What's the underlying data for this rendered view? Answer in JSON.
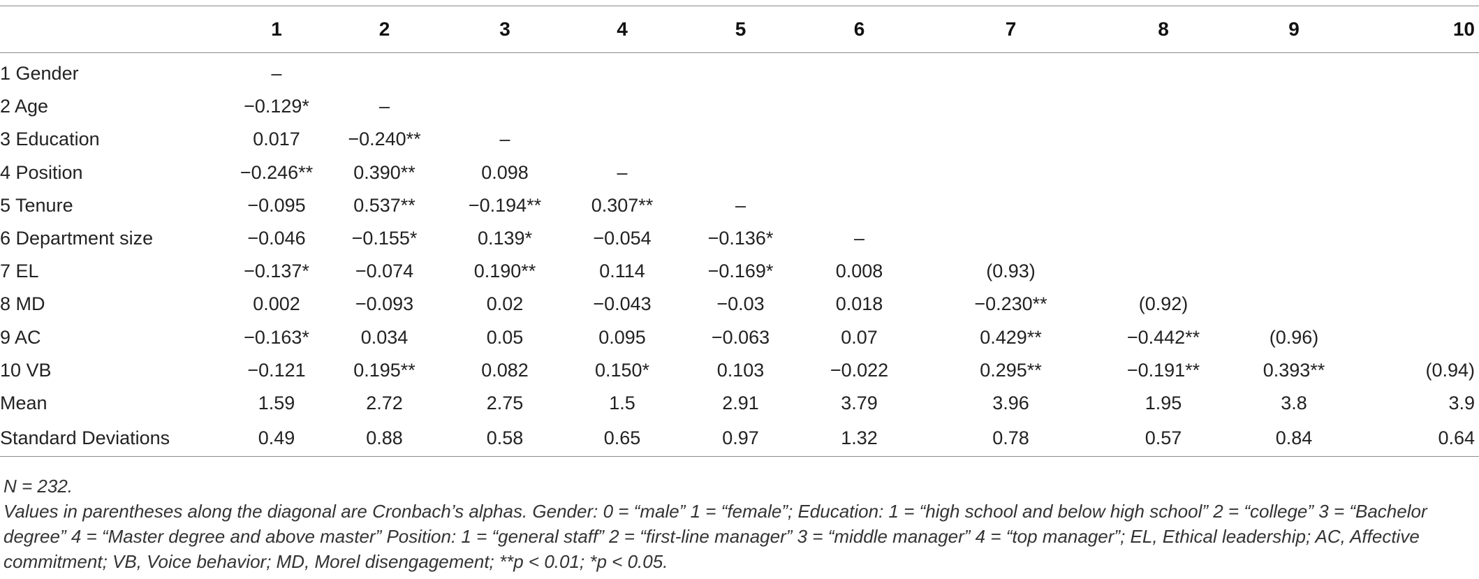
{
  "headers": [
    "",
    "1",
    "2",
    "3",
    "4",
    "5",
    "6",
    "7",
    "8",
    "9",
    "10"
  ],
  "rows": [
    {
      "label": "1 Gender",
      "cells": [
        "–",
        "",
        "",
        "",
        "",
        "",
        "",
        "",
        "",
        ""
      ]
    },
    {
      "label": "2 Age",
      "cells": [
        "−0.129*",
        "–",
        "",
        "",
        "",
        "",
        "",
        "",
        "",
        ""
      ]
    },
    {
      "label": "3 Education",
      "cells": [
        "0.017",
        "−0.240**",
        "–",
        "",
        "",
        "",
        "",
        "",
        "",
        ""
      ]
    },
    {
      "label": "4 Position",
      "cells": [
        "−0.246**",
        "0.390**",
        "0.098",
        "–",
        "",
        "",
        "",
        "",
        "",
        ""
      ]
    },
    {
      "label": "5 Tenure",
      "cells": [
        "−0.095",
        "0.537**",
        "−0.194**",
        "0.307**",
        "–",
        "",
        "",
        "",
        "",
        ""
      ]
    },
    {
      "label": "6 Department size",
      "cells": [
        "−0.046",
        "−0.155*",
        "0.139*",
        "−0.054",
        "−0.136*",
        "–",
        "",
        "",
        "",
        ""
      ]
    },
    {
      "label": "7 EL",
      "cells": [
        "−0.137*",
        "−0.074",
        "0.190**",
        "0.114",
        "−0.169*",
        "0.008",
        "(0.93)",
        "",
        "",
        ""
      ]
    },
    {
      "label": "8 MD",
      "cells": [
        "0.002",
        "−0.093",
        "0.02",
        "−0.043",
        "−0.03",
        "0.018",
        "−0.230**",
        "(0.92)",
        "",
        ""
      ]
    },
    {
      "label": "9 AC",
      "cells": [
        "−0.163*",
        "0.034",
        "0.05",
        "0.095",
        "−0.063",
        "0.07",
        "0.429**",
        "−0.442**",
        "(0.96)",
        ""
      ]
    },
    {
      "label": "10 VB",
      "cells": [
        "−0.121",
        "0.195**",
        "0.082",
        "0.150*",
        "0.103",
        "−0.022",
        "0.295**",
        "−0.191**",
        "0.393**",
        "(0.94)"
      ]
    },
    {
      "label": "Mean",
      "cells": [
        "1.59",
        "2.72",
        "2.75",
        "1.5",
        "2.91",
        "3.79",
        "3.96",
        "1.95",
        "3.8",
        "3.9"
      ]
    },
    {
      "label": "Standard Deviations",
      "cells": [
        "0.49",
        "0.88",
        "0.58",
        "0.65",
        "0.97",
        "1.32",
        "0.78",
        "0.57",
        "0.84",
        "0.64"
      ]
    }
  ],
  "notes": {
    "n": "N = 232.",
    "detail": "Values in parentheses along the diagonal are Cronbach’s alphas. Gender: 0 = “male” 1 = “female”; Education: 1 = “high school and below high school” 2 = “college” 3 = “Bachelor degree” 4 = “Master degree and above master” Position: 1 = “general staff” 2 = “first-line manager” 3 = “middle manager” 4 = “top manager”; EL, Ethical leadership; AC, Affective commitment; VB, Voice behavior; MD, Morel disengagement; **p < 0.01; *p < 0.05."
  }
}
